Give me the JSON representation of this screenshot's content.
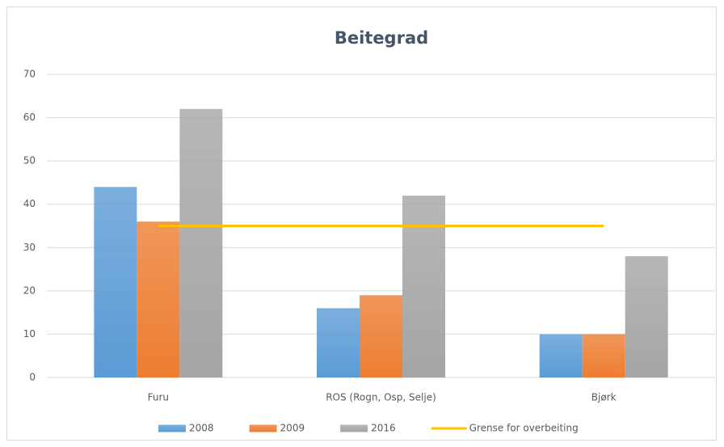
{
  "chart_data": {
    "type": "bar",
    "title": "Beitegrad",
    "categories": [
      "Furu",
      "ROS (Rogn, Osp, Selje)",
      "Bjørk"
    ],
    "series": [
      {
        "name": "2008",
        "color": "#5b9bd5",
        "values": [
          44,
          16,
          10
        ]
      },
      {
        "name": "2009",
        "color": "#ed7d31",
        "values": [
          36,
          19,
          10
        ]
      },
      {
        "name": "2016",
        "color": "#a5a5a5",
        "values": [
          62,
          42,
          28
        ]
      },
      {
        "name": "Grense for overbeiting",
        "color": "#ffc000",
        "type": "line",
        "values": [
          35,
          35,
          35
        ]
      }
    ],
    "ylim": [
      0,
      70
    ],
    "yticks": [
      0,
      10,
      20,
      30,
      40,
      50,
      60,
      70
    ],
    "grid": true,
    "legend": "bottom"
  }
}
